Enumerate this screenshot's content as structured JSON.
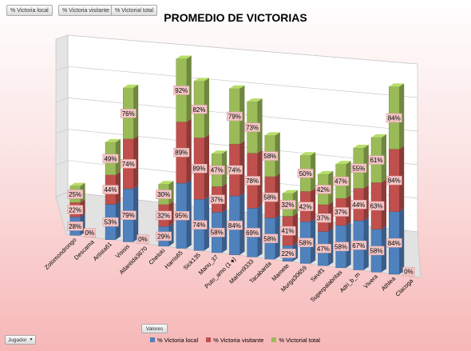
{
  "field_buttons": {
    "local": "% Victoria local",
    "visitante": "% Victoria visitante",
    "total": "% Victorial total",
    "valores": "Valores",
    "jugador": "Jugador"
  },
  "colors": {
    "local": "#4f81bd",
    "visitante": "#c0504d",
    "total": "#9bbb59"
  },
  "chart_data": {
    "type": "bar",
    "stacked": true,
    "three_d": true,
    "title": "PROMEDIO DE VICTORIAS",
    "categories": [
      "Zolomondrongo",
      "Descama",
      "Artista61",
      "Visisis",
      "Atlantida3670",
      "Cheloki",
      "Harris65",
      "Sick135",
      "Manu_37",
      "Puto_amo (1 ♠)",
      "Marlon9333",
      "Tacabarda",
      "Mamete",
      "Murga30659",
      "Sevlf1",
      "Superpalabritas",
      "Adri_b_m",
      "Vivera",
      "Athlea",
      "Clacoga"
    ],
    "series": [
      {
        "name": "% Victoria local",
        "values": [
          28,
          0,
          53,
          79,
          0,
          29,
          95,
          74,
          58,
          84,
          69,
          58,
          22,
          58,
          47,
          58,
          67,
          58,
          84,
          0
        ],
        "labels": [
          "28%",
          "0%",
          "53%",
          "79%",
          "0%",
          "29%",
          "95%",
          "74%",
          "58%",
          "84%",
          "69%",
          "58%",
          "22%",
          "58%",
          "47%",
          "58%",
          "67%",
          "58%",
          "84%",
          "0%"
        ]
      },
      {
        "name": "% Victoria visitante",
        "values": [
          22,
          0,
          44,
          74,
          0,
          32,
          89,
          89,
          37,
          74,
          78,
          58,
          41,
          42,
          37,
          37,
          44,
          63,
          84,
          0
        ],
        "labels": [
          "22%",
          "",
          "44%",
          "74%",
          "",
          "32%",
          "89%",
          "89%",
          "37%",
          "74%",
          "78%",
          "58%",
          "41%",
          "42%",
          "37%",
          "37%",
          "44%",
          "63%",
          "84%",
          ""
        ]
      },
      {
        "name": "% Victorial total",
        "values": [
          25,
          0,
          49,
          76,
          0,
          30,
          92,
          82,
          47,
          79,
          73,
          58,
          32,
          50,
          42,
          47,
          55,
          61,
          84,
          0
        ],
        "labels": [
          "25%",
          "",
          "49%",
          "76%",
          "",
          "30%",
          "92%",
          "82%",
          "47%",
          "79%",
          "73%",
          "58%",
          "32%",
          "50%",
          "42%",
          "47%",
          "55%",
          "61%",
          "84%",
          ""
        ]
      }
    ],
    "legend": "bottom",
    "grid": true
  }
}
